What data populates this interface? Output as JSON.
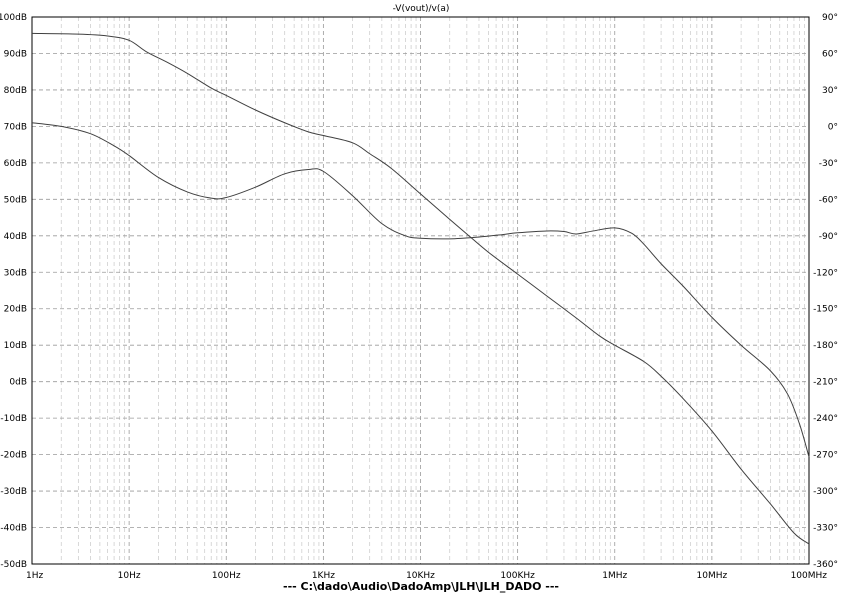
{
  "chart_data": {
    "type": "line",
    "title": "-V(vout)/v(a)",
    "footer": "---  C:\\dado\\Audio\\DadoAmp\\JLH\\JLH_DADO  ---",
    "x_scale": "log",
    "xlim": [
      1,
      100000000
    ],
    "x_ticks": [
      {
        "value": 1,
        "label": "1Hz"
      },
      {
        "value": 10,
        "label": "10Hz"
      },
      {
        "value": 100,
        "label": "100Hz"
      },
      {
        "value": 1000,
        "label": "1KHz"
      },
      {
        "value": 10000,
        "label": "10KHz"
      },
      {
        "value": 100000,
        "label": "100KHz"
      },
      {
        "value": 1000000,
        "label": "1MHz"
      },
      {
        "value": 10000000,
        "label": "10MHz"
      },
      {
        "value": 100000000,
        "label": "100MHz"
      }
    ],
    "y_left": {
      "lim": [
        -50,
        100
      ],
      "ticks": [
        {
          "value": 100,
          "label": "100dB"
        },
        {
          "value": 90,
          "label": "90dB"
        },
        {
          "value": 80,
          "label": "80dB"
        },
        {
          "value": 70,
          "label": "70dB"
        },
        {
          "value": 60,
          "label": "60dB"
        },
        {
          "value": 50,
          "label": "50dB"
        },
        {
          "value": 40,
          "label": "40dB"
        },
        {
          "value": 30,
          "label": "30dB"
        },
        {
          "value": 20,
          "label": "20dB"
        },
        {
          "value": 10,
          "label": "10dB"
        },
        {
          "value": 0,
          "label": "0dB"
        },
        {
          "value": -10,
          "label": "-10dB"
        },
        {
          "value": -20,
          "label": "-20dB"
        },
        {
          "value": -30,
          "label": "-30dB"
        },
        {
          "value": -40,
          "label": "-40dB"
        },
        {
          "value": -50,
          "label": "-50dB"
        }
      ]
    },
    "y_right": {
      "lim": [
        -360,
        90
      ],
      "ticks": [
        {
          "value": 90,
          "label": "90°"
        },
        {
          "value": 60,
          "label": "60°"
        },
        {
          "value": 30,
          "label": "30°"
        },
        {
          "value": 0,
          "label": "0°"
        },
        {
          "value": -30,
          "label": "-30°"
        },
        {
          "value": -60,
          "label": "-60°"
        },
        {
          "value": -90,
          "label": "-90°"
        },
        {
          "value": -120,
          "label": "-120°"
        },
        {
          "value": -150,
          "label": "-150°"
        },
        {
          "value": -180,
          "label": "-180°"
        },
        {
          "value": -210,
          "label": "-210°"
        },
        {
          "value": -240,
          "label": "-240°"
        },
        {
          "value": -270,
          "label": "-270°"
        },
        {
          "value": -300,
          "label": "-300°"
        },
        {
          "value": -330,
          "label": "-330°"
        },
        {
          "value": -360,
          "label": "-360°"
        }
      ]
    },
    "grid": true,
    "series": [
      {
        "axis": "left",
        "color": "#404040",
        "points": [
          [
            1,
            95.5
          ],
          [
            3,
            95.3
          ],
          [
            6,
            94.8
          ],
          [
            10,
            93.6
          ],
          [
            15,
            90.5
          ],
          [
            25,
            87.5
          ],
          [
            40,
            84.5
          ],
          [
            70,
            80.5
          ],
          [
            100,
            78.5
          ],
          [
            200,
            74.5
          ],
          [
            400,
            71
          ],
          [
            700,
            68.5
          ],
          [
            1000,
            67.5
          ],
          [
            2000,
            65.5
          ],
          [
            3000,
            62.5
          ],
          [
            5000,
            58.5
          ],
          [
            10000,
            51.5
          ],
          [
            20000,
            44.5
          ],
          [
            30000,
            40.5
          ],
          [
            50000,
            35.5
          ],
          [
            100000,
            29.5
          ],
          [
            200000,
            23.5
          ],
          [
            400000,
            17.5
          ],
          [
            700000,
            12.5
          ],
          [
            1000000,
            10
          ],
          [
            2000000,
            5.5
          ],
          [
            3000000,
            1.5
          ],
          [
            5000000,
            -4.5
          ],
          [
            10000000,
            -13.5
          ],
          [
            20000000,
            -24
          ],
          [
            40000000,
            -33.5
          ],
          [
            70000000,
            -41.5
          ],
          [
            100000000,
            -44.5
          ]
        ]
      },
      {
        "axis": "right",
        "color": "#404040",
        "points": [
          [
            1,
            3
          ],
          [
            2,
            0
          ],
          [
            4,
            -6
          ],
          [
            7,
            -16
          ],
          [
            10,
            -24
          ],
          [
            20,
            -42
          ],
          [
            40,
            -54
          ],
          [
            70,
            -59
          ],
          [
            100,
            -58.5
          ],
          [
            200,
            -50
          ],
          [
            400,
            -39
          ],
          [
            700,
            -35.5
          ],
          [
            1000,
            -37
          ],
          [
            2000,
            -57
          ],
          [
            4000,
            -80
          ],
          [
            7000,
            -90
          ],
          [
            10000,
            -92
          ],
          [
            20000,
            -92.5
          ],
          [
            40000,
            -91
          ],
          [
            70000,
            -89
          ],
          [
            100000,
            -87.5
          ],
          [
            200000,
            -86
          ],
          [
            300000,
            -86.5
          ],
          [
            400000,
            -88.5
          ],
          [
            600000,
            -86
          ],
          [
            1000000,
            -83.5
          ],
          [
            1500000,
            -88
          ],
          [
            2000000,
            -97
          ],
          [
            3000000,
            -113
          ],
          [
            5000000,
            -131
          ],
          [
            10000000,
            -157
          ],
          [
            20000000,
            -180
          ],
          [
            40000000,
            -201
          ],
          [
            60000000,
            -220
          ],
          [
            80000000,
            -245
          ],
          [
            100000000,
            -272
          ]
        ]
      }
    ]
  }
}
